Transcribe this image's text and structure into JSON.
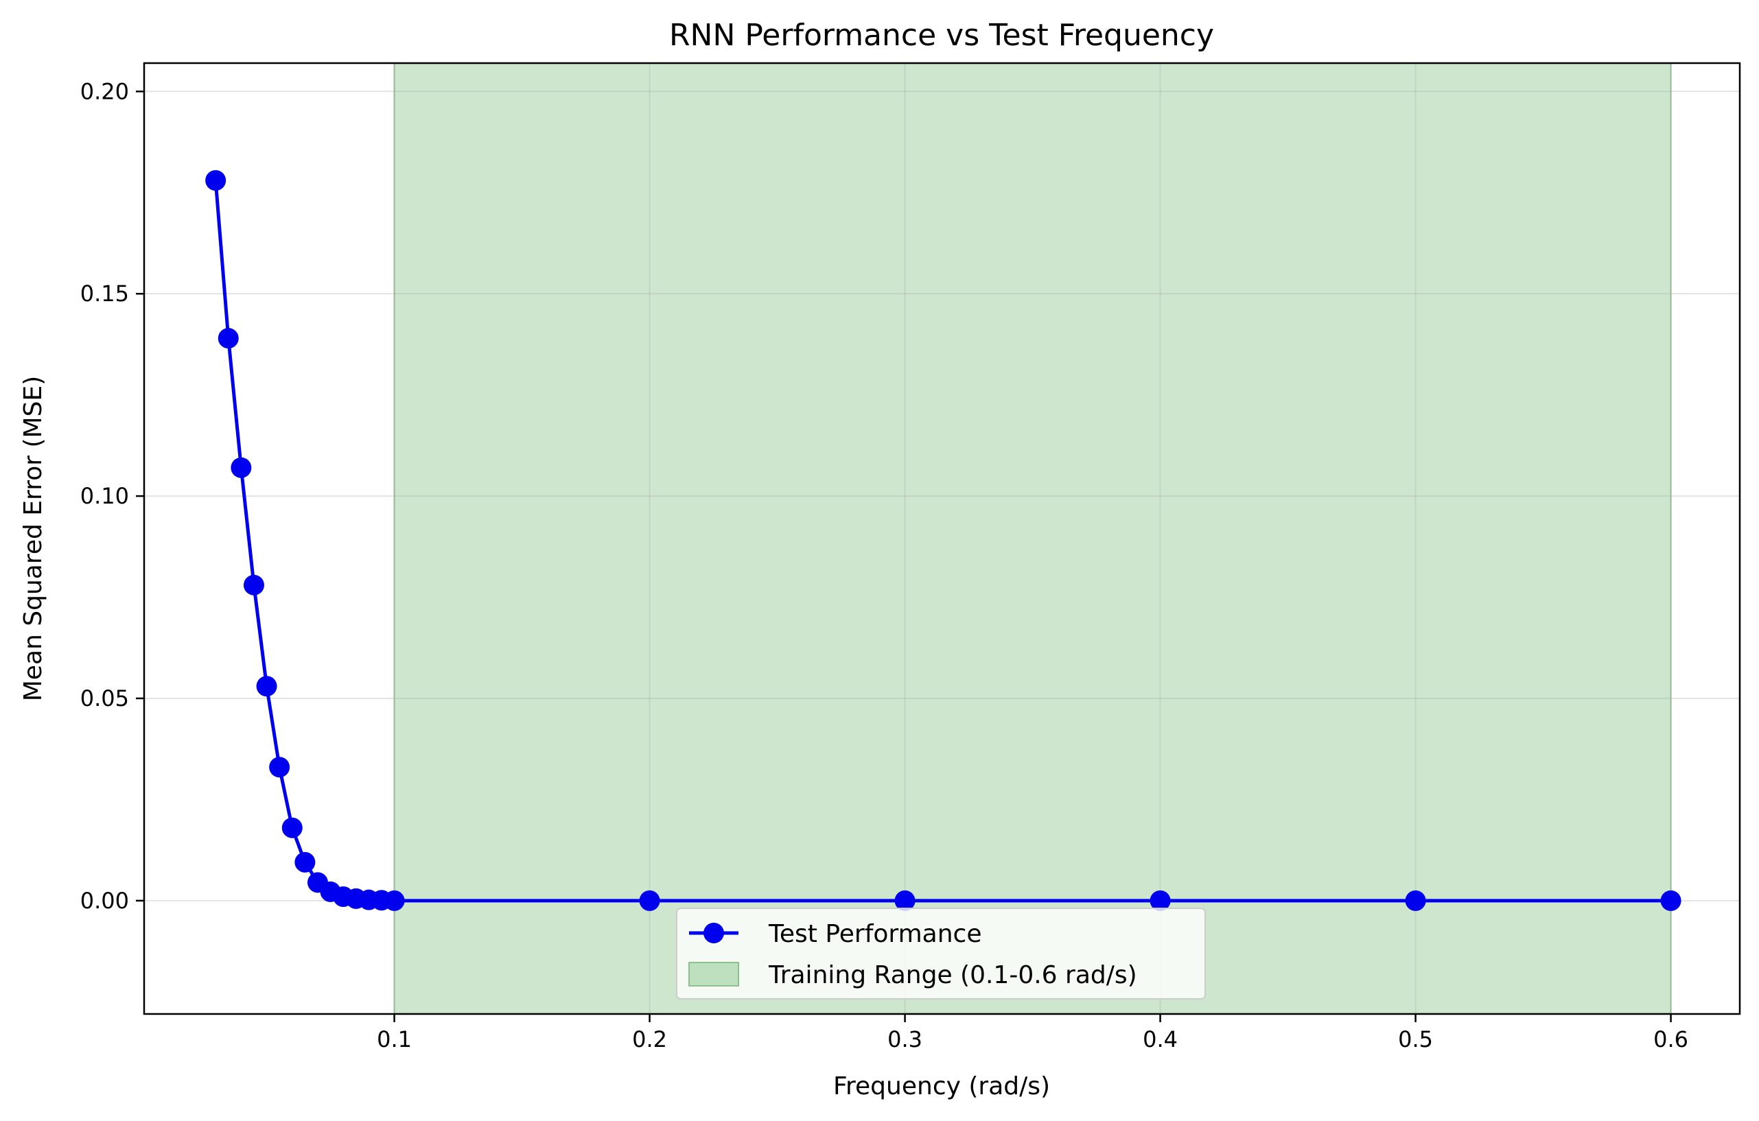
{
  "chart_data": {
    "type": "line",
    "title": "RNN Performance vs Test Frequency",
    "xlabel": "Frequency (rad/s)",
    "ylabel": "Mean Squared Error (MSE)",
    "xlim": [
      0.002,
      0.627
    ],
    "ylim": [
      -0.028,
      0.207
    ],
    "xticks": [
      0.1,
      0.2,
      0.3,
      0.4,
      0.5,
      0.6
    ],
    "xtick_labels": [
      "0.1",
      "0.2",
      "0.3",
      "0.4",
      "0.5",
      "0.6"
    ],
    "yticks": [
      0.0,
      0.05,
      0.1,
      0.15,
      0.2
    ],
    "ytick_labels": [
      "0.00",
      "0.05",
      "0.10",
      "0.15",
      "0.20"
    ],
    "grid": true,
    "legend_position": "lower-center",
    "series": [
      {
        "name": "Test Performance",
        "color": "#0000ee",
        "marker": "circle",
        "x": [
          0.03,
          0.035,
          0.04,
          0.045,
          0.05,
          0.055,
          0.06,
          0.065,
          0.07,
          0.075,
          0.08,
          0.085,
          0.09,
          0.095,
          0.1,
          0.2,
          0.3,
          0.4,
          0.5,
          0.6
        ],
        "y": [
          0.178,
          0.139,
          0.107,
          0.078,
          0.053,
          0.033,
          0.018,
          0.0095,
          0.0045,
          0.0022,
          0.001,
          0.0005,
          0.0002,
          0.0001,
          0.0,
          0.0,
          0.0,
          0.0,
          0.0,
          0.0
        ]
      }
    ],
    "shaded_regions": [
      {
        "name": "Training Range (0.1-0.6 rad/s)",
        "x_start": 0.1,
        "x_end": 0.6,
        "color": "#a8d4a8"
      }
    ]
  }
}
